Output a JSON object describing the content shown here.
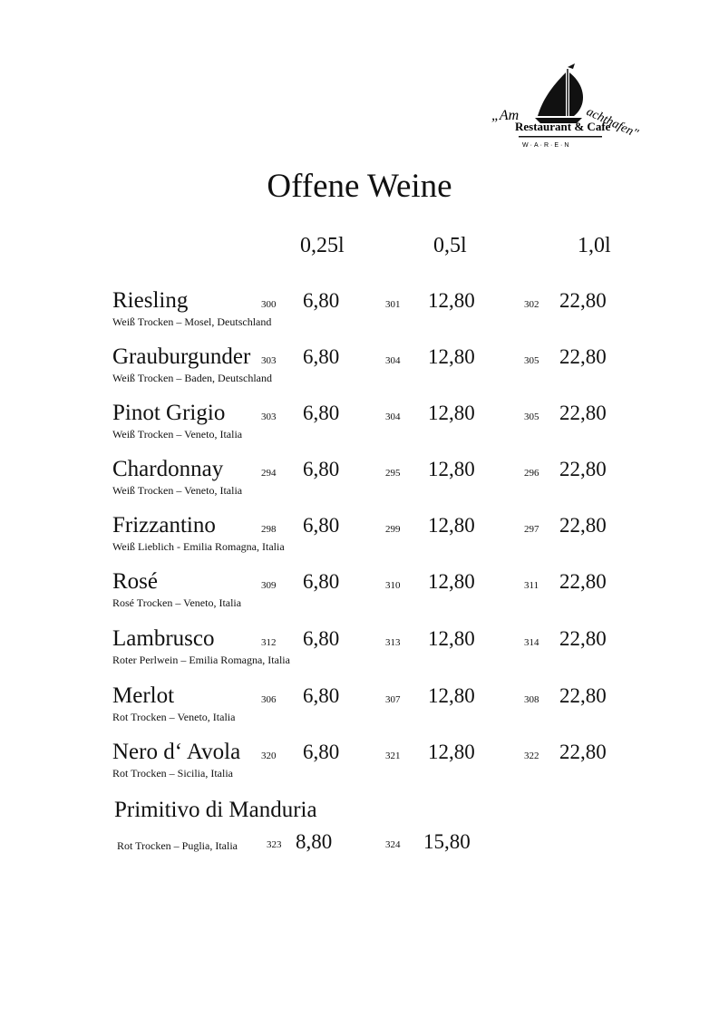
{
  "logo": {
    "script_text": "Am Yachthafen",
    "name": "Restaurant & Cafe",
    "city": "W·A·R·E·N"
  },
  "title": "Offene Weine",
  "sizes": [
    "0,25l",
    "0,5l",
    "1,0l"
  ],
  "wines": [
    {
      "name": "Riesling",
      "desc": "Weiß Trocken – Mosel, Deutschland",
      "nums": [
        "300",
        "301",
        "302"
      ],
      "prices": [
        "6,80",
        "12,80",
        "22,80"
      ]
    },
    {
      "name": "Grauburgunder",
      "desc": "Weiß Trocken – Baden, Deutschland",
      "nums": [
        "303",
        "304",
        "305"
      ],
      "prices": [
        "6,80",
        "12,80",
        "22,80"
      ]
    },
    {
      "name": "Pinot Grigio",
      "desc": "Weiß Trocken – Veneto, Italia",
      "nums": [
        "303",
        "304",
        "305"
      ],
      "prices": [
        "6,80",
        "12,80",
        "22,80"
      ]
    },
    {
      "name": "Chardonnay",
      "desc": "Weiß Trocken – Veneto, Italia",
      "nums": [
        "294",
        "295",
        "296"
      ],
      "prices": [
        "6,80",
        "12,80",
        "22,80"
      ]
    },
    {
      "name": "Frizzantino",
      "desc": "Weiß Lieblich - Emilia Romagna, Italia",
      "nums": [
        "298",
        "299",
        "297"
      ],
      "prices": [
        "6,80",
        "12,80",
        "22,80"
      ]
    },
    {
      "name": "Rosé",
      "desc": "Rosé Trocken – Veneto, Italia",
      "nums": [
        "309",
        "310",
        "311"
      ],
      "prices": [
        "6,80",
        "12,80",
        "22,80"
      ]
    },
    {
      "name": "Lambrusco",
      "desc": "Roter Perlwein – Emilia Romagna, Italia",
      "nums": [
        "312",
        "313",
        "314"
      ],
      "prices": [
        "6,80",
        "12,80",
        "22,80"
      ]
    },
    {
      "name": "Merlot",
      "desc": "Rot Trocken – Veneto, Italia",
      "nums": [
        "306",
        "307",
        "308"
      ],
      "prices": [
        "6,80",
        "12,80",
        "22,80"
      ]
    },
    {
      "name": "Nero d‘ Avola",
      "desc": "Rot Trocken – Sicilia, Italia",
      "nums": [
        "320",
        "321",
        "322"
      ],
      "prices": [
        "6,80",
        "12,80",
        "22,80"
      ]
    }
  ],
  "primitivo": {
    "name": "Primitivo di Manduria",
    "desc": "Rot Trocken – Puglia, Italia",
    "nums": [
      "323",
      "324"
    ],
    "prices": [
      "8,80",
      "15,80"
    ]
  }
}
